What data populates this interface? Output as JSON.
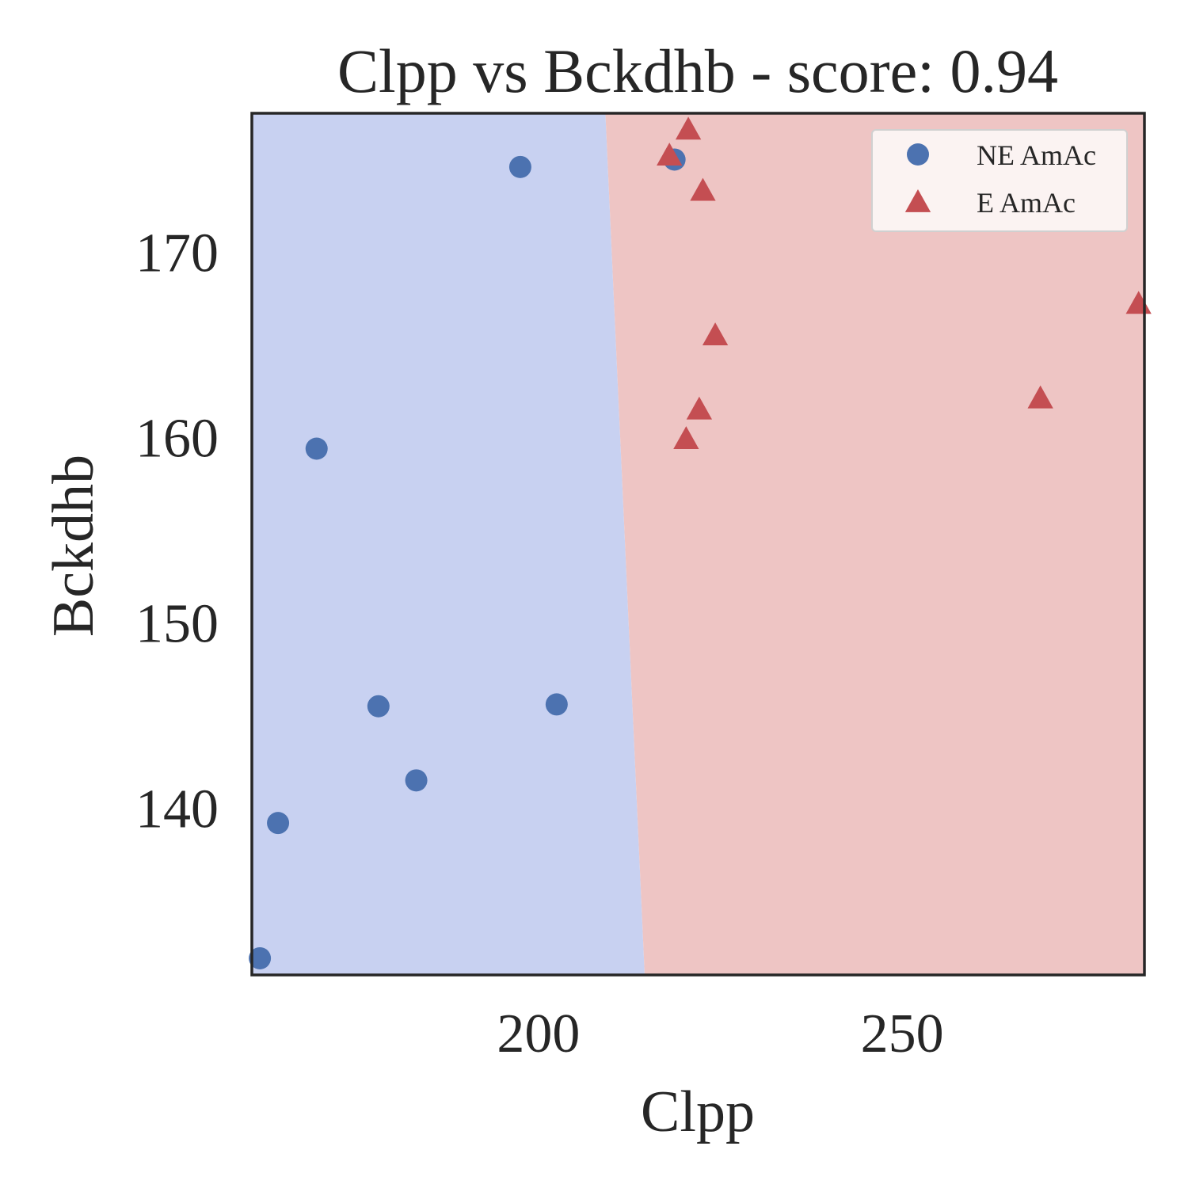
{
  "chart_data": {
    "type": "scatter",
    "title": "Clpp vs Bckdhb - score: 0.94",
    "xlabel": "Clpp",
    "ylabel": "Bckdhb",
    "xlim": [
      160.6,
      283.3
    ],
    "ylim": [
      131.0,
      177.5
    ],
    "x_ticks": [
      200,
      250
    ],
    "y_ticks": [
      140,
      150,
      160,
      170
    ],
    "grid": false,
    "legend_position": "top-right",
    "decision_boundary": {
      "left_class": "NE AmAc",
      "right_class": "E AmAc",
      "x_at_y_top": 209.2,
      "x_at_y_bottom": 214.6,
      "colors": {
        "left": "#c8d1f1",
        "right": "#eec5c4"
      }
    },
    "series": [
      {
        "name": "NE AmAc",
        "marker": "circle",
        "color": "#4c72b0",
        "points": [
          {
            "x": 161.7,
            "y": 131.9
          },
          {
            "x": 164.2,
            "y": 139.2
          },
          {
            "x": 169.5,
            "y": 159.4
          },
          {
            "x": 178.0,
            "y": 145.5
          },
          {
            "x": 183.2,
            "y": 141.5
          },
          {
            "x": 197.5,
            "y": 174.6
          },
          {
            "x": 202.5,
            "y": 145.6
          },
          {
            "x": 218.7,
            "y": 175.0
          }
        ]
      },
      {
        "name": "E AmAc",
        "marker": "triangle",
        "color": "#c44e52",
        "points": [
          {
            "x": 218.0,
            "y": 175.1
          },
          {
            "x": 220.6,
            "y": 176.5
          },
          {
            "x": 222.6,
            "y": 173.2
          },
          {
            "x": 224.3,
            "y": 165.4
          },
          {
            "x": 222.1,
            "y": 161.4
          },
          {
            "x": 220.3,
            "y": 159.8
          },
          {
            "x": 269.0,
            "y": 162.0
          },
          {
            "x": 282.5,
            "y": 167.1
          }
        ]
      }
    ]
  }
}
